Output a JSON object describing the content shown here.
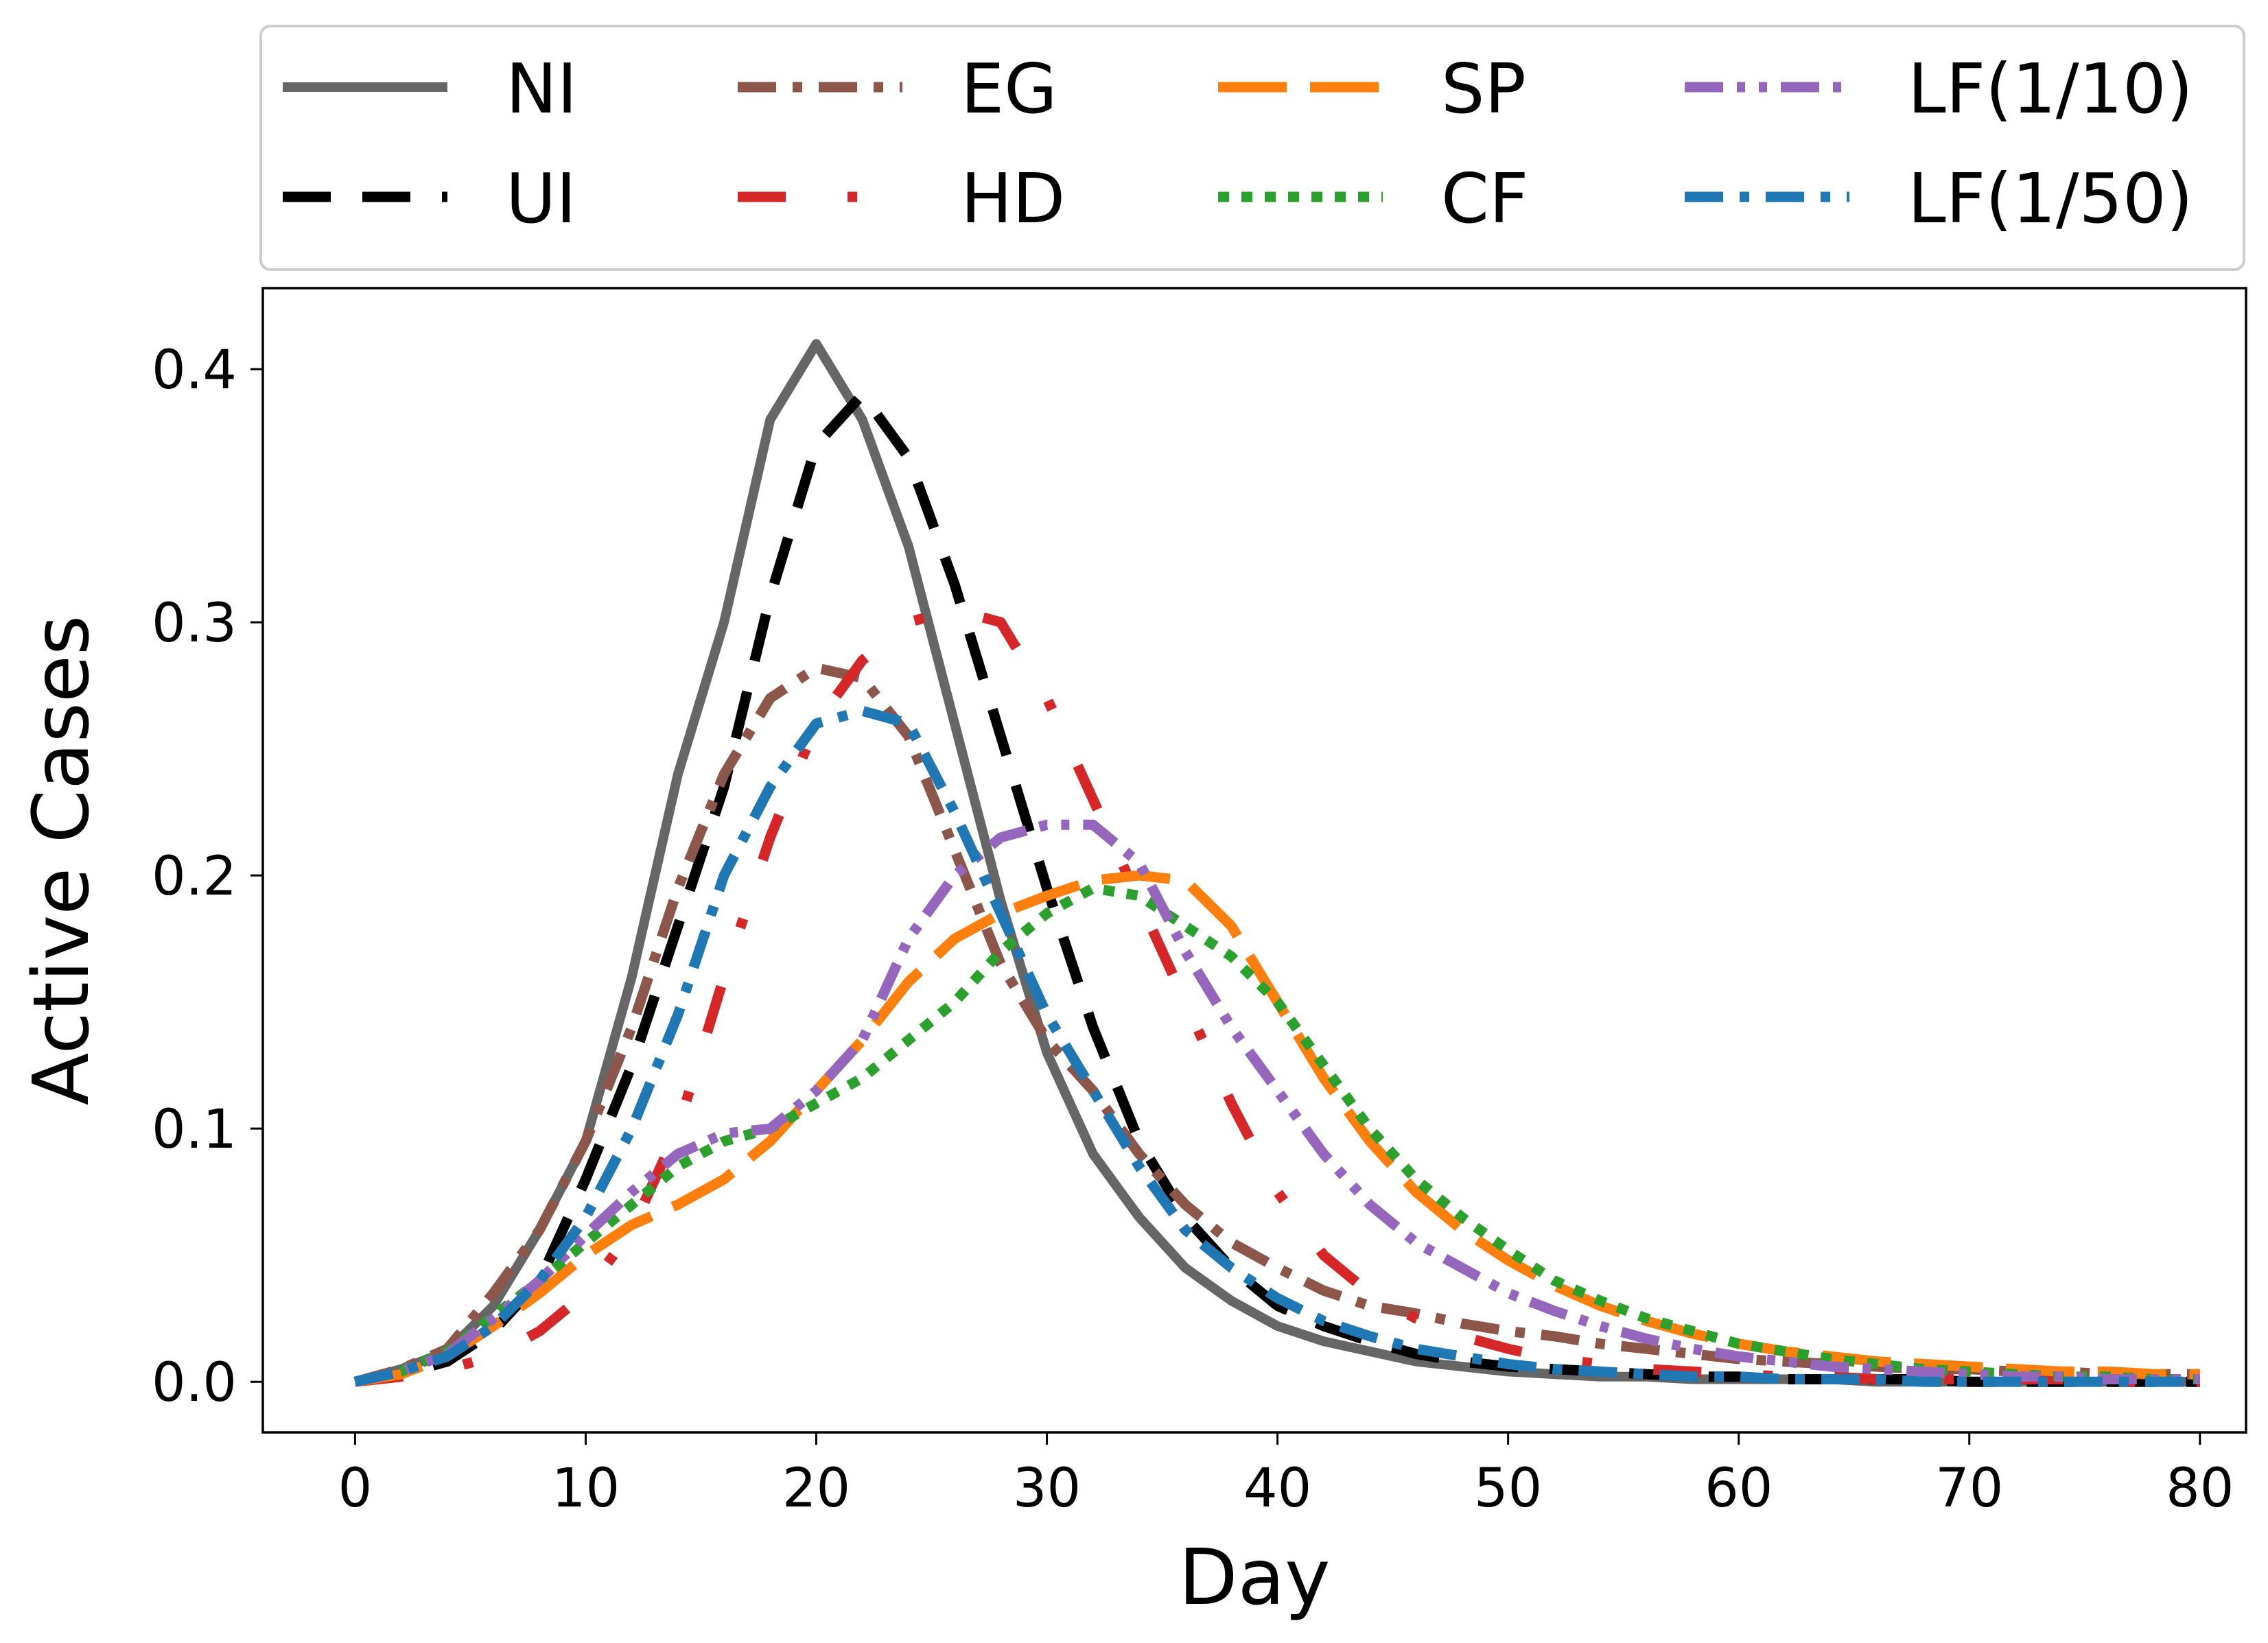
{
  "chart_data": {
    "type": "line",
    "xlabel": "Day",
    "ylabel": "Active Cases",
    "xlim": [
      -4,
      82
    ],
    "ylim": [
      -0.02,
      0.432
    ],
    "xticks": [
      0,
      10,
      20,
      30,
      40,
      50,
      60,
      70,
      80
    ],
    "yticks": [
      0.0,
      0.1,
      0.2,
      0.3,
      0.4
    ],
    "ytick_labels": [
      "0.0",
      "0.1",
      "0.2",
      "0.3",
      "0.4"
    ],
    "legend_position": "top (outside plot), 4 columns",
    "grid": false,
    "x": [
      0,
      2,
      4,
      6,
      8,
      10,
      12,
      14,
      16,
      18,
      20,
      22,
      24,
      26,
      28,
      30,
      32,
      34,
      36,
      38,
      40,
      42,
      44,
      46,
      48,
      50,
      52,
      54,
      56,
      58,
      60,
      62,
      64,
      66,
      68,
      70,
      72,
      74,
      76,
      78,
      80
    ],
    "series": [
      {
        "name": "NI",
        "color": "#666666",
        "dash": "solid",
        "values": [
          0.0,
          0.005,
          0.012,
          0.03,
          0.06,
          0.095,
          0.16,
          0.24,
          0.3,
          0.38,
          0.41,
          0.38,
          0.33,
          0.26,
          0.19,
          0.13,
          0.09,
          0.065,
          0.045,
          0.032,
          0.022,
          0.016,
          0.012,
          0.008,
          0.006,
          0.004,
          0.003,
          0.002,
          0.002,
          0.001,
          0.001,
          0.001,
          0.001,
          0.0,
          0.0,
          0.0,
          0.0,
          0.0,
          0.0,
          0.0,
          0.0
        ]
      },
      {
        "name": "UI",
        "color": "#000000",
        "dash": "dashed",
        "values": [
          0.0,
          0.003,
          0.008,
          0.02,
          0.04,
          0.08,
          0.125,
          0.18,
          0.235,
          0.31,
          0.37,
          0.39,
          0.365,
          0.315,
          0.255,
          0.195,
          0.14,
          0.095,
          0.065,
          0.045,
          0.03,
          0.022,
          0.016,
          0.011,
          0.008,
          0.006,
          0.005,
          0.004,
          0.003,
          0.002,
          0.002,
          0.001,
          0.001,
          0.001,
          0.001,
          0.0,
          0.0,
          0.0,
          0.0,
          0.0,
          0.0
        ]
      },
      {
        "name": "EG",
        "color": "#8c564b",
        "dash": "dashdot",
        "values": [
          0.0,
          0.005,
          0.013,
          0.035,
          0.06,
          0.095,
          0.14,
          0.195,
          0.24,
          0.27,
          0.282,
          0.278,
          0.255,
          0.21,
          0.165,
          0.135,
          0.115,
          0.09,
          0.07,
          0.055,
          0.045,
          0.036,
          0.03,
          0.027,
          0.023,
          0.02,
          0.018,
          0.015,
          0.013,
          0.011,
          0.009,
          0.008,
          0.007,
          0.006,
          0.005,
          0.005,
          0.004,
          0.004,
          0.003,
          0.003,
          0.003
        ]
      },
      {
        "name": "HD",
        "color": "#d62728",
        "dash": "dashdotsparse",
        "values": [
          0.0,
          0.002,
          0.005,
          0.01,
          0.02,
          0.035,
          0.06,
          0.1,
          0.16,
          0.215,
          0.26,
          0.285,
          0.3,
          0.305,
          0.3,
          0.27,
          0.23,
          0.19,
          0.15,
          0.11,
          0.075,
          0.05,
          0.035,
          0.025,
          0.018,
          0.013,
          0.009,
          0.007,
          0.005,
          0.004,
          0.003,
          0.002,
          0.002,
          0.001,
          0.001,
          0.001,
          0.001,
          0.001,
          0.0,
          0.0,
          0.0
        ]
      },
      {
        "name": "SP",
        "color": "#ff7f0e",
        "dash": "longdash",
        "values": [
          0.0,
          0.003,
          0.01,
          0.022,
          0.035,
          0.05,
          0.062,
          0.07,
          0.08,
          0.095,
          0.115,
          0.135,
          0.158,
          0.175,
          0.185,
          0.192,
          0.198,
          0.2,
          0.198,
          0.18,
          0.15,
          0.12,
          0.095,
          0.075,
          0.06,
          0.048,
          0.038,
          0.03,
          0.024,
          0.019,
          0.015,
          0.012,
          0.01,
          0.008,
          0.007,
          0.006,
          0.005,
          0.004,
          0.004,
          0.003,
          0.003
        ]
      },
      {
        "name": "CF",
        "color": "#2ca02c",
        "dash": "dotted",
        "values": [
          0.0,
          0.004,
          0.012,
          0.026,
          0.04,
          0.055,
          0.07,
          0.085,
          0.095,
          0.1,
          0.11,
          0.12,
          0.135,
          0.15,
          0.17,
          0.185,
          0.195,
          0.192,
          0.18,
          0.168,
          0.15,
          0.125,
          0.1,
          0.08,
          0.065,
          0.052,
          0.04,
          0.032,
          0.025,
          0.02,
          0.015,
          0.012,
          0.009,
          0.007,
          0.005,
          0.004,
          0.003,
          0.002,
          0.002,
          0.001,
          0.001
        ]
      },
      {
        "name": "LF(1/10)",
        "color": "#9467bd",
        "dash": "dashdotdot",
        "values": [
          0.0,
          0.004,
          0.011,
          0.025,
          0.04,
          0.058,
          0.075,
          0.09,
          0.098,
          0.1,
          0.115,
          0.135,
          0.175,
          0.2,
          0.215,
          0.22,
          0.22,
          0.205,
          0.17,
          0.14,
          0.115,
          0.09,
          0.07,
          0.055,
          0.045,
          0.035,
          0.028,
          0.022,
          0.017,
          0.013,
          0.01,
          0.008,
          0.006,
          0.005,
          0.004,
          0.003,
          0.002,
          0.002,
          0.001,
          0.001,
          0.001
        ]
      },
      {
        "name": "LF(1/50)",
        "color": "#1f77b4",
        "dash": "dashdot",
        "values": [
          0.0,
          0.004,
          0.01,
          0.022,
          0.04,
          0.065,
          0.1,
          0.145,
          0.2,
          0.235,
          0.26,
          0.265,
          0.26,
          0.225,
          0.185,
          0.145,
          0.115,
          0.085,
          0.06,
          0.045,
          0.033,
          0.024,
          0.018,
          0.013,
          0.01,
          0.007,
          0.005,
          0.004,
          0.003,
          0.002,
          0.002,
          0.001,
          0.001,
          0.001,
          0.0,
          0.0,
          0.0,
          0.0,
          0.0,
          0.0,
          0.0
        ]
      }
    ]
  }
}
